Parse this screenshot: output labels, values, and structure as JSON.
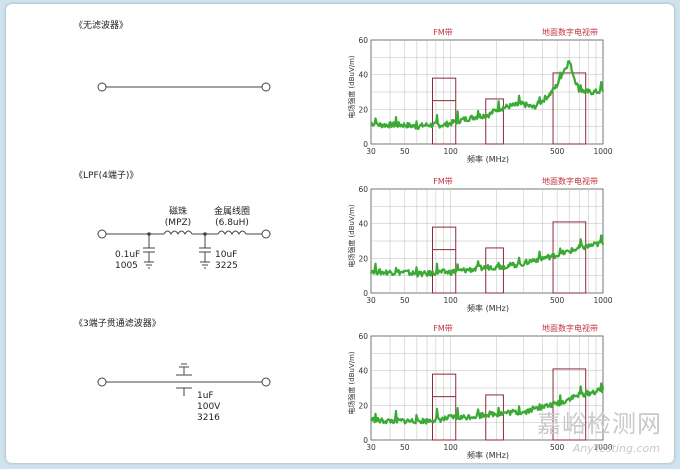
{
  "sections": [
    {
      "title": "《无滤波器》",
      "labels": {}
    },
    {
      "title": "《LPF(4端子)》",
      "labels": {
        "bead_name": "磁珠",
        "bead_type": "(MPZ)",
        "inductor_name": "金属线圈",
        "inductor_value": "(6.8uH)",
        "cap1_value": "0.1uF",
        "cap1_size": "1005",
        "cap2_value": "10uF",
        "cap2_size": "3225"
      }
    },
    {
      "title": "《3端子贯通滤波器》",
      "labels": {
        "cap_value": "1uF",
        "cap_voltage": "100V",
        "cap_size": "3216"
      }
    }
  ],
  "chart_common": {
    "ylabel": "电场强度 (dBuV/m)",
    "xlabel": "频率 (MHz)",
    "fm_label": "FM带",
    "tv_label": "地面数字电视带",
    "x_ticks": [
      "30",
      "50",
      "100",
      "500",
      "1000"
    ],
    "y_ticks": [
      "0",
      "20",
      "40",
      "60"
    ],
    "line_color": "#3aaa35",
    "limit_color": "#8b2b3a",
    "band_label_color": "#c0343f"
  },
  "chart_data": [
    {
      "type": "line",
      "xscale": "log",
      "xlim": [
        30,
        1000
      ],
      "ylim": [
        0,
        60
      ],
      "grid": true,
      "x": [
        30,
        35,
        40,
        50,
        60,
        70,
        80,
        90,
        100,
        120,
        150,
        180,
        200,
        250,
        300,
        350,
        400,
        450,
        500,
        550,
        600,
        650,
        700,
        800,
        900,
        1000
      ],
      "y": [
        12,
        11,
        11,
        11,
        10,
        11,
        11,
        11,
        12,
        14,
        16,
        17,
        20,
        22,
        23,
        21,
        25,
        29,
        34,
        42,
        48,
        38,
        31,
        30,
        30,
        31
      ],
      "limits": [
        {
          "x": [
            76,
            108
          ],
          "levels": [
            25,
            38
          ]
        },
        {
          "x": [
            170,
            222
          ],
          "levels": [
            26
          ]
        },
        {
          "x": [
            470,
            770
          ],
          "levels": [
            41
          ]
        }
      ]
    },
    {
      "type": "line",
      "xscale": "log",
      "xlim": [
        30,
        1000
      ],
      "ylim": [
        0,
        60
      ],
      "grid": true,
      "x": [
        30,
        35,
        40,
        50,
        60,
        70,
        80,
        90,
        100,
        120,
        150,
        180,
        200,
        250,
        300,
        350,
        400,
        450,
        500,
        550,
        600,
        650,
        700,
        800,
        900,
        1000
      ],
      "y": [
        13,
        12,
        12,
        12,
        11,
        11,
        12,
        12,
        12,
        13,
        14,
        15,
        15,
        16,
        17,
        19,
        20,
        21,
        22,
        23,
        24,
        25,
        26,
        27,
        28,
        29
      ],
      "limits": [
        {
          "x": [
            76,
            108
          ],
          "levels": [
            25,
            38
          ]
        },
        {
          "x": [
            170,
            222
          ],
          "levels": [
            26
          ]
        },
        {
          "x": [
            470,
            770
          ],
          "levels": [
            41
          ]
        }
      ]
    },
    {
      "type": "line",
      "xscale": "log",
      "xlim": [
        30,
        1000
      ],
      "ylim": [
        0,
        60
      ],
      "grid": true,
      "x": [
        30,
        35,
        40,
        50,
        60,
        70,
        80,
        90,
        100,
        120,
        150,
        180,
        200,
        250,
        300,
        350,
        400,
        450,
        500,
        550,
        600,
        650,
        700,
        800,
        900,
        1000
      ],
      "y": [
        12,
        11,
        11,
        11,
        11,
        11,
        12,
        12,
        13,
        13,
        14,
        15,
        15,
        16,
        16,
        18,
        19,
        20,
        21,
        22,
        24,
        25,
        26,
        27,
        28,
        29
      ],
      "limits": [
        {
          "x": [
            76,
            108
          ],
          "levels": [
            25,
            38
          ]
        },
        {
          "x": [
            170,
            222
          ],
          "levels": [
            26
          ]
        },
        {
          "x": [
            470,
            770
          ],
          "levels": [
            41
          ]
        }
      ]
    }
  ],
  "watermark": {
    "cn": "嘉峪检测网",
    "en": "AnyTesting.com"
  }
}
